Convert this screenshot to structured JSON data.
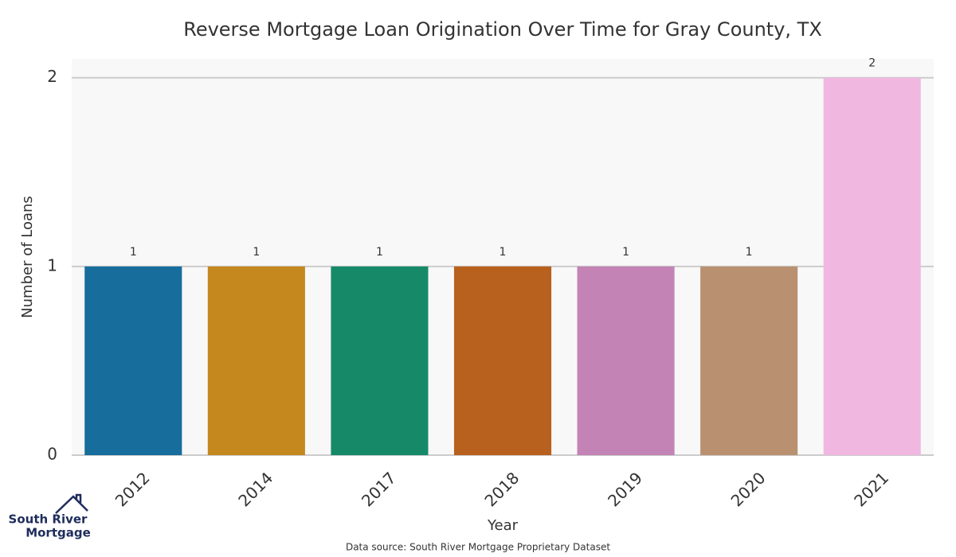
{
  "chart_data": {
    "type": "bar",
    "title": "Reverse Mortgage Loan Origination Over Time for Gray County, TX",
    "x_label": "Year",
    "y_label": "Number of Loans",
    "categories": [
      "2012",
      "2014",
      "2017",
      "2018",
      "2019",
      "2020",
      "2021"
    ],
    "values": [
      1,
      1,
      1,
      1,
      1,
      1,
      2
    ],
    "colors": [
      "#176d9c",
      "#c4881f",
      "#168a68",
      "#b8601e",
      "#c383b5",
      "#ba9170",
      "#f0b8e0"
    ],
    "ylim": [
      0,
      2.1
    ],
    "yticks": [
      0,
      1,
      2
    ],
    "grid": true,
    "source": "Data source: South River Mortgage Proprietary Dataset"
  },
  "logo": {
    "line1": "South River",
    "line2": "Mortgage"
  }
}
